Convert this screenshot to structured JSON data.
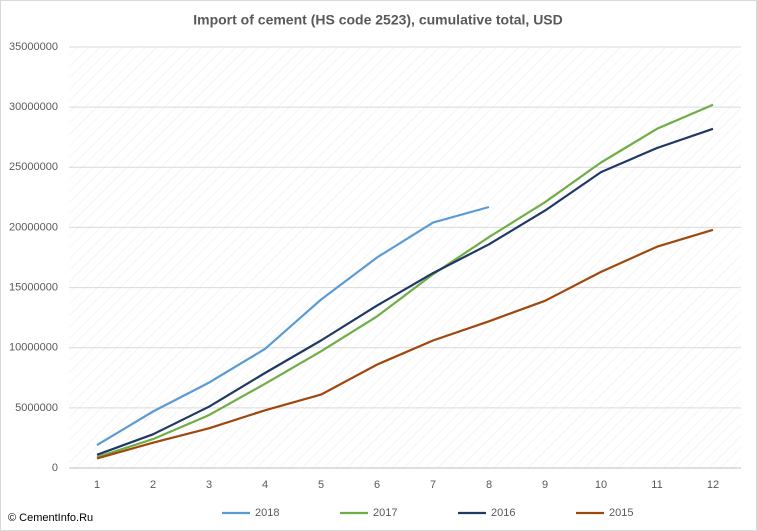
{
  "chart_data": {
    "type": "line",
    "title": "Import of cement (HS code 2523), cumulative total, USD",
    "categories": [
      "1",
      "2",
      "3",
      "4",
      "5",
      "6",
      "7",
      "8",
      "9",
      "10",
      "11",
      "12"
    ],
    "series": [
      {
        "name": "2018",
        "color": "#5b9bd5",
        "values": [
          1900000,
          4700000,
          7100000,
          9900000,
          14000000,
          17500000,
          20400000,
          21700000,
          null,
          null,
          null,
          null
        ]
      },
      {
        "name": "2017",
        "color": "#70ad47",
        "values": [
          900000,
          2400000,
          4400000,
          7000000,
          9700000,
          12600000,
          16100000,
          19200000,
          22100000,
          25400000,
          28200000,
          30200000
        ]
      },
      {
        "name": "2016",
        "color": "#1f3864",
        "values": [
          1100000,
          2800000,
          5100000,
          7900000,
          10600000,
          13500000,
          16200000,
          18600000,
          21400000,
          24600000,
          26600000,
          28200000
        ]
      },
      {
        "name": "2015",
        "color": "#9e480e",
        "values": [
          800000,
          2100000,
          3300000,
          4800000,
          6100000,
          8600000,
          10600000,
          12200000,
          13900000,
          16300000,
          18400000,
          19800000
        ]
      }
    ],
    "ylim": [
      0,
      35000000
    ],
    "yticks": [
      0,
      5000000,
      10000000,
      15000000,
      20000000,
      25000000,
      30000000,
      35000000
    ],
    "grid": true,
    "legend": "bottom",
    "source": "© CementInfo.Ru"
  }
}
